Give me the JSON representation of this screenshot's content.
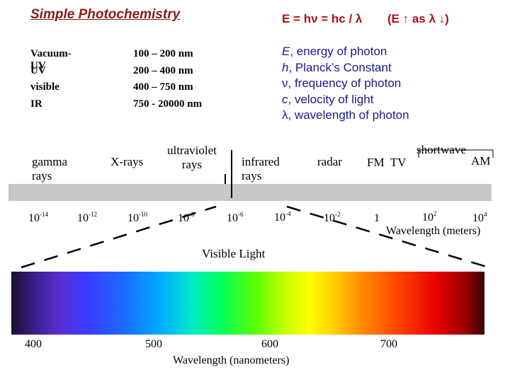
{
  "title": "Simple Photochemistry",
  "formula": {
    "text": "E = hν = hc / λ",
    "trend_prefix": "(E",
    "trend_mid": "as λ",
    "trend_suffix": ")",
    "up_arrow": "↑",
    "down_arrow": "↓"
  },
  "ranges": [
    {
      "name": "Vacuum-UV",
      "value": "100 – 200 nm"
    },
    {
      "name": "UV",
      "value": "200 – 400 nm"
    },
    {
      "name": "visible",
      "value": "400 – 750 nm"
    },
    {
      "name": "IR",
      "value": "750 - 20000 nm"
    }
  ],
  "definitions": [
    {
      "symbol": "E",
      "text": ", energy of photon"
    },
    {
      "symbol": "h",
      "text": ", Planck’s Constant"
    },
    {
      "symbol": "ν",
      "text": ", frequency of photon"
    },
    {
      "symbol": "c",
      "text": ", velocity of light"
    },
    {
      "symbol": "λ",
      "text": ", wavelength of photon"
    }
  ],
  "bands": {
    "gamma_line1": "gamma",
    "gamma_line2": "rays",
    "xrays": "X-rays",
    "uv_line1": "ultraviolet",
    "uv_line2": "rays",
    "ir_line1": "infrared",
    "ir_line2": "rays",
    "radar": "radar",
    "fm_tv": "FM  TV",
    "shortwave": "shortwave",
    "am": "AM"
  },
  "wavelength_axis": {
    "label": "Wavelength (meters)",
    "ticks": [
      {
        "base": "10",
        "exp": "-14"
      },
      {
        "base": "10",
        "exp": "-12"
      },
      {
        "base": "10",
        "exp": "-10"
      },
      {
        "base": "10",
        "exp": "-8"
      },
      {
        "base": "10",
        "exp": "-6"
      },
      {
        "base": "10",
        "exp": "-4"
      },
      {
        "base": "10",
        "exp": "-2"
      },
      {
        "base": "1",
        "exp": ""
      },
      {
        "base": "10",
        "exp": "2"
      },
      {
        "base": "10",
        "exp": "4"
      }
    ]
  },
  "visible": {
    "title": "Visible Light",
    "axis_label": "Wavelength (nanometers)",
    "ticks": [
      "400",
      "500",
      "600",
      "700"
    ]
  },
  "colors": {
    "title": "#8b1a1a",
    "formula": "#b01010",
    "definitions": "#1a1a8c",
    "spectrum_bar": "#c8c8c8"
  }
}
